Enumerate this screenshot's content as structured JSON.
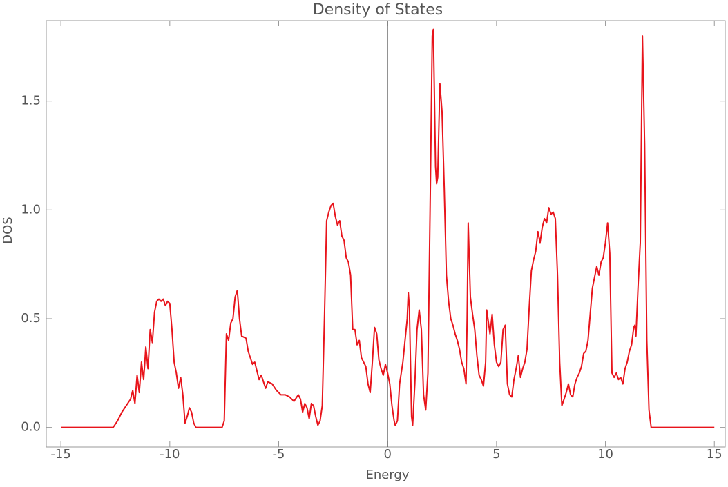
{
  "chart_data": {
    "type": "line",
    "title": "Density of States",
    "xlabel": "Energy",
    "ylabel": "DOS",
    "x": [
      -15,
      -12.6,
      -12.4,
      -12.2,
      -12.0,
      -11.8,
      -11.7,
      -11.6,
      -11.5,
      -11.4,
      -11.3,
      -11.2,
      -11.1,
      -11.0,
      -10.9,
      -10.8,
      -10.7,
      -10.6,
      -10.5,
      -10.4,
      -10.3,
      -10.2,
      -10.1,
      -10.0,
      -9.9,
      -9.8,
      -9.7,
      -9.6,
      -9.5,
      -9.4,
      -9.3,
      -9.2,
      -9.1,
      -9.0,
      -8.9,
      -8.8,
      -7.6,
      -7.5,
      -7.4,
      -7.3,
      -7.2,
      -7.1,
      -7.0,
      -6.9,
      -6.8,
      -6.7,
      -6.5,
      -6.4,
      -6.2,
      -6.1,
      -5.9,
      -5.8,
      -5.6,
      -5.5,
      -5.3,
      -5.1,
      -4.9,
      -4.7,
      -4.5,
      -4.3,
      -4.1,
      -4.0,
      -3.9,
      -3.8,
      -3.7,
      -3.6,
      -3.5,
      -3.4,
      -3.3,
      -3.2,
      -3.1,
      -3.0,
      -2.9,
      -2.8,
      -2.7,
      -2.6,
      -2.5,
      -2.4,
      -2.3,
      -2.2,
      -2.1,
      -2.0,
      -1.9,
      -1.8,
      -1.7,
      -1.6,
      -1.5,
      -1.4,
      -1.3,
      -1.2,
      -1.1,
      -1.0,
      -0.9,
      -0.8,
      -0.7,
      -0.6,
      -0.5,
      -0.4,
      -0.3,
      -0.2,
      -0.1,
      0,
      0.1,
      0.2,
      0.3,
      0.35,
      0.45,
      0.55,
      0.7,
      0.8,
      0.9,
      0.95,
      1.0,
      1.1,
      1.15,
      1.25,
      1.35,
      1.45,
      1.55,
      1.65,
      1.75,
      1.85,
      1.95,
      2.05,
      2.1,
      2.2,
      2.25,
      2.3,
      2.4,
      2.5,
      2.6,
      2.7,
      2.8,
      2.9,
      3.0,
      3.1,
      3.2,
      3.3,
      3.4,
      3.5,
      3.6,
      3.65,
      3.7,
      3.8,
      3.9,
      4.0,
      4.1,
      4.2,
      4.3,
      4.4,
      4.5,
      4.55,
      4.7,
      4.8,
      4.9,
      5.0,
      5.1,
      5.2,
      5.3,
      5.4,
      5.5,
      5.6,
      5.7,
      5.8,
      5.9,
      6.0,
      6.1,
      6.2,
      6.3,
      6.4,
      6.5,
      6.6,
      6.7,
      6.8,
      6.9,
      7.0,
      7.1,
      7.2,
      7.3,
      7.4,
      7.5,
      7.6,
      7.7,
      7.8,
      7.9,
      8.0,
      8.1,
      8.2,
      8.3,
      8.4,
      8.5,
      8.6,
      8.7,
      8.8,
      8.9,
      9.0,
      9.1,
      9.2,
      9.3,
      9.4,
      9.5,
      9.6,
      9.7,
      9.8,
      9.9,
      10.0,
      10.1,
      10.2,
      10.3,
      10.4,
      10.5,
      10.6,
      10.7,
      10.8,
      10.9,
      11.0,
      11.1,
      11.2,
      11.3,
      11.35,
      11.4,
      11.5,
      11.6,
      11.7,
      11.8,
      11.9,
      12.0,
      12.1,
      15
    ],
    "series": [
      {
        "name": "DOS",
        "color": "#e8141b",
        "values": [
          0,
          0,
          0.03,
          0.07,
          0.1,
          0.13,
          0.17,
          0.11,
          0.24,
          0.16,
          0.3,
          0.22,
          0.37,
          0.27,
          0.45,
          0.39,
          0.53,
          0.58,
          0.59,
          0.58,
          0.59,
          0.56,
          0.58,
          0.57,
          0.45,
          0.3,
          0.25,
          0.18,
          0.23,
          0.15,
          0.02,
          0.05,
          0.09,
          0.07,
          0.02,
          0,
          0,
          0.03,
          0.43,
          0.4,
          0.48,
          0.5,
          0.6,
          0.63,
          0.5,
          0.42,
          0.41,
          0.35,
          0.29,
          0.3,
          0.22,
          0.24,
          0.18,
          0.21,
          0.2,
          0.17,
          0.15,
          0.15,
          0.14,
          0.12,
          0.15,
          0.13,
          0.07,
          0.11,
          0.09,
          0.04,
          0.11,
          0.1,
          0.05,
          0.01,
          0.03,
          0.1,
          0.5,
          0.95,
          0.99,
          1.02,
          1.03,
          0.97,
          0.93,
          0.95,
          0.88,
          0.86,
          0.78,
          0.76,
          0.7,
          0.45,
          0.45,
          0.38,
          0.4,
          0.32,
          0.3,
          0.28,
          0.2,
          0.16,
          0.3,
          0.46,
          0.43,
          0.31,
          0.27,
          0.24,
          0.29,
          0.25,
          0.2,
          0.1,
          0.03,
          0.01,
          0.03,
          0.2,
          0.3,
          0.4,
          0.5,
          0.62,
          0.55,
          0.05,
          0.01,
          0.2,
          0.45,
          0.54,
          0.45,
          0.15,
          0.08,
          0.25,
          1.0,
          1.8,
          1.83,
          1.2,
          1.12,
          1.15,
          1.58,
          1.45,
          1.1,
          0.7,
          0.58,
          0.5,
          0.47,
          0.43,
          0.4,
          0.36,
          0.3,
          0.27,
          0.2,
          0.5,
          0.94,
          0.6,
          0.52,
          0.45,
          0.33,
          0.24,
          0.22,
          0.19,
          0.3,
          0.54,
          0.43,
          0.52,
          0.38,
          0.3,
          0.28,
          0.3,
          0.45,
          0.47,
          0.2,
          0.15,
          0.14,
          0.22,
          0.27,
          0.33,
          0.23,
          0.27,
          0.3,
          0.36,
          0.55,
          0.72,
          0.77,
          0.81,
          0.9,
          0.85,
          0.92,
          0.96,
          0.94,
          1.01,
          0.98,
          0.99,
          0.96,
          0.7,
          0.3,
          0.1,
          0.13,
          0.16,
          0.2,
          0.15,
          0.14,
          0.2,
          0.23,
          0.25,
          0.28,
          0.34,
          0.35,
          0.4,
          0.52,
          0.64,
          0.69,
          0.74,
          0.7,
          0.76,
          0.78,
          0.85,
          0.94,
          0.8,
          0.25,
          0.23,
          0.25,
          0.22,
          0.23,
          0.2,
          0.27,
          0.3,
          0.35,
          0.38,
          0.46,
          0.47,
          0.42,
          0.65,
          0.85,
          1.8,
          1.3,
          0.4,
          0.08,
          0,
          0
        ]
      }
    ],
    "xlim": [
      -15.67,
      15.5
    ],
    "ylim": [
      -0.09,
      1.87
    ],
    "xticks": [
      -15,
      -10,
      -5,
      0,
      5,
      10,
      15
    ],
    "yticks": [
      {
        "value": 0,
        "label": "0.0"
      },
      0.5,
      {
        "value": 1,
        "label": "1.0"
      },
      1.5
    ]
  }
}
